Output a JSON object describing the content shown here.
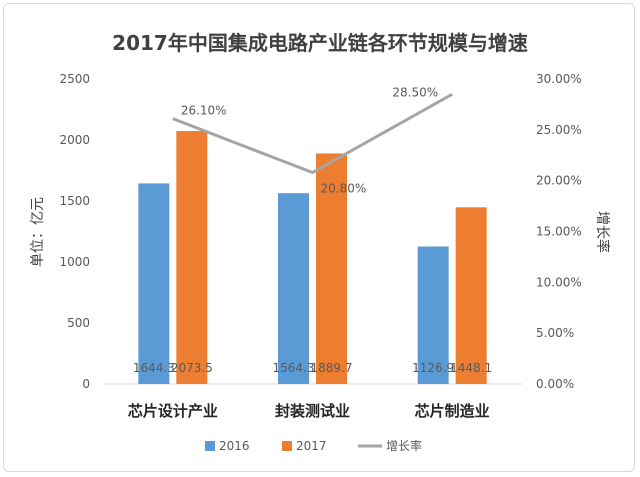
{
  "chart_data": {
    "type": "bar",
    "title": "2017年中国集成电路产业链各环节规模与增速",
    "categories": [
      "芯片设计产业",
      "封装测试业",
      "芯片制造业"
    ],
    "series": [
      {
        "name": "2016",
        "values": [
          1644.3,
          1564.3,
          1126.9
        ],
        "labels": [
          "1644.3",
          "1564.3",
          "1126.9"
        ],
        "color": "#5b9bd5"
      },
      {
        "name": "2017",
        "values": [
          2073.5,
          1889.7,
          1448.1
        ],
        "labels": [
          "2073.5",
          "1889.7",
          "1448.1"
        ],
        "color": "#ed7d31"
      }
    ],
    "line_series": {
      "name": "增长率",
      "values": [
        26.1,
        20.8,
        28.5
      ],
      "labels": [
        "26.10%",
        "20.80%",
        "28.50%"
      ],
      "color": "#a5a5a5"
    },
    "ylabel": "单位：亿元",
    "y2label": "增长率",
    "ylim": [
      0,
      2500
    ],
    "y2lim": [
      0,
      30
    ],
    "yticks": [
      "0",
      "500",
      "1000",
      "1500",
      "2000",
      "2500"
    ],
    "y2ticks": [
      "0.00%",
      "5.00%",
      "10.00%",
      "15.00%",
      "20.00%",
      "25.00%",
      "30.00%"
    ],
    "legend_position": "bottom",
    "grid": false
  }
}
